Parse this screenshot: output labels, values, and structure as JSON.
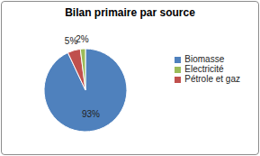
{
  "chart_data": {
    "type": "pie",
    "title": "Bilan primaire par source",
    "categories": [
      "Biomasse",
      "Pétrole et gaz",
      "Electricité"
    ],
    "values": [
      93,
      5,
      2
    ],
    "value_labels": [
      "93%",
      "5%",
      "2%"
    ],
    "colors": [
      "#4F81BD",
      "#C0504D",
      "#9BBB59"
    ],
    "legend": "right",
    "data_labels": true
  }
}
